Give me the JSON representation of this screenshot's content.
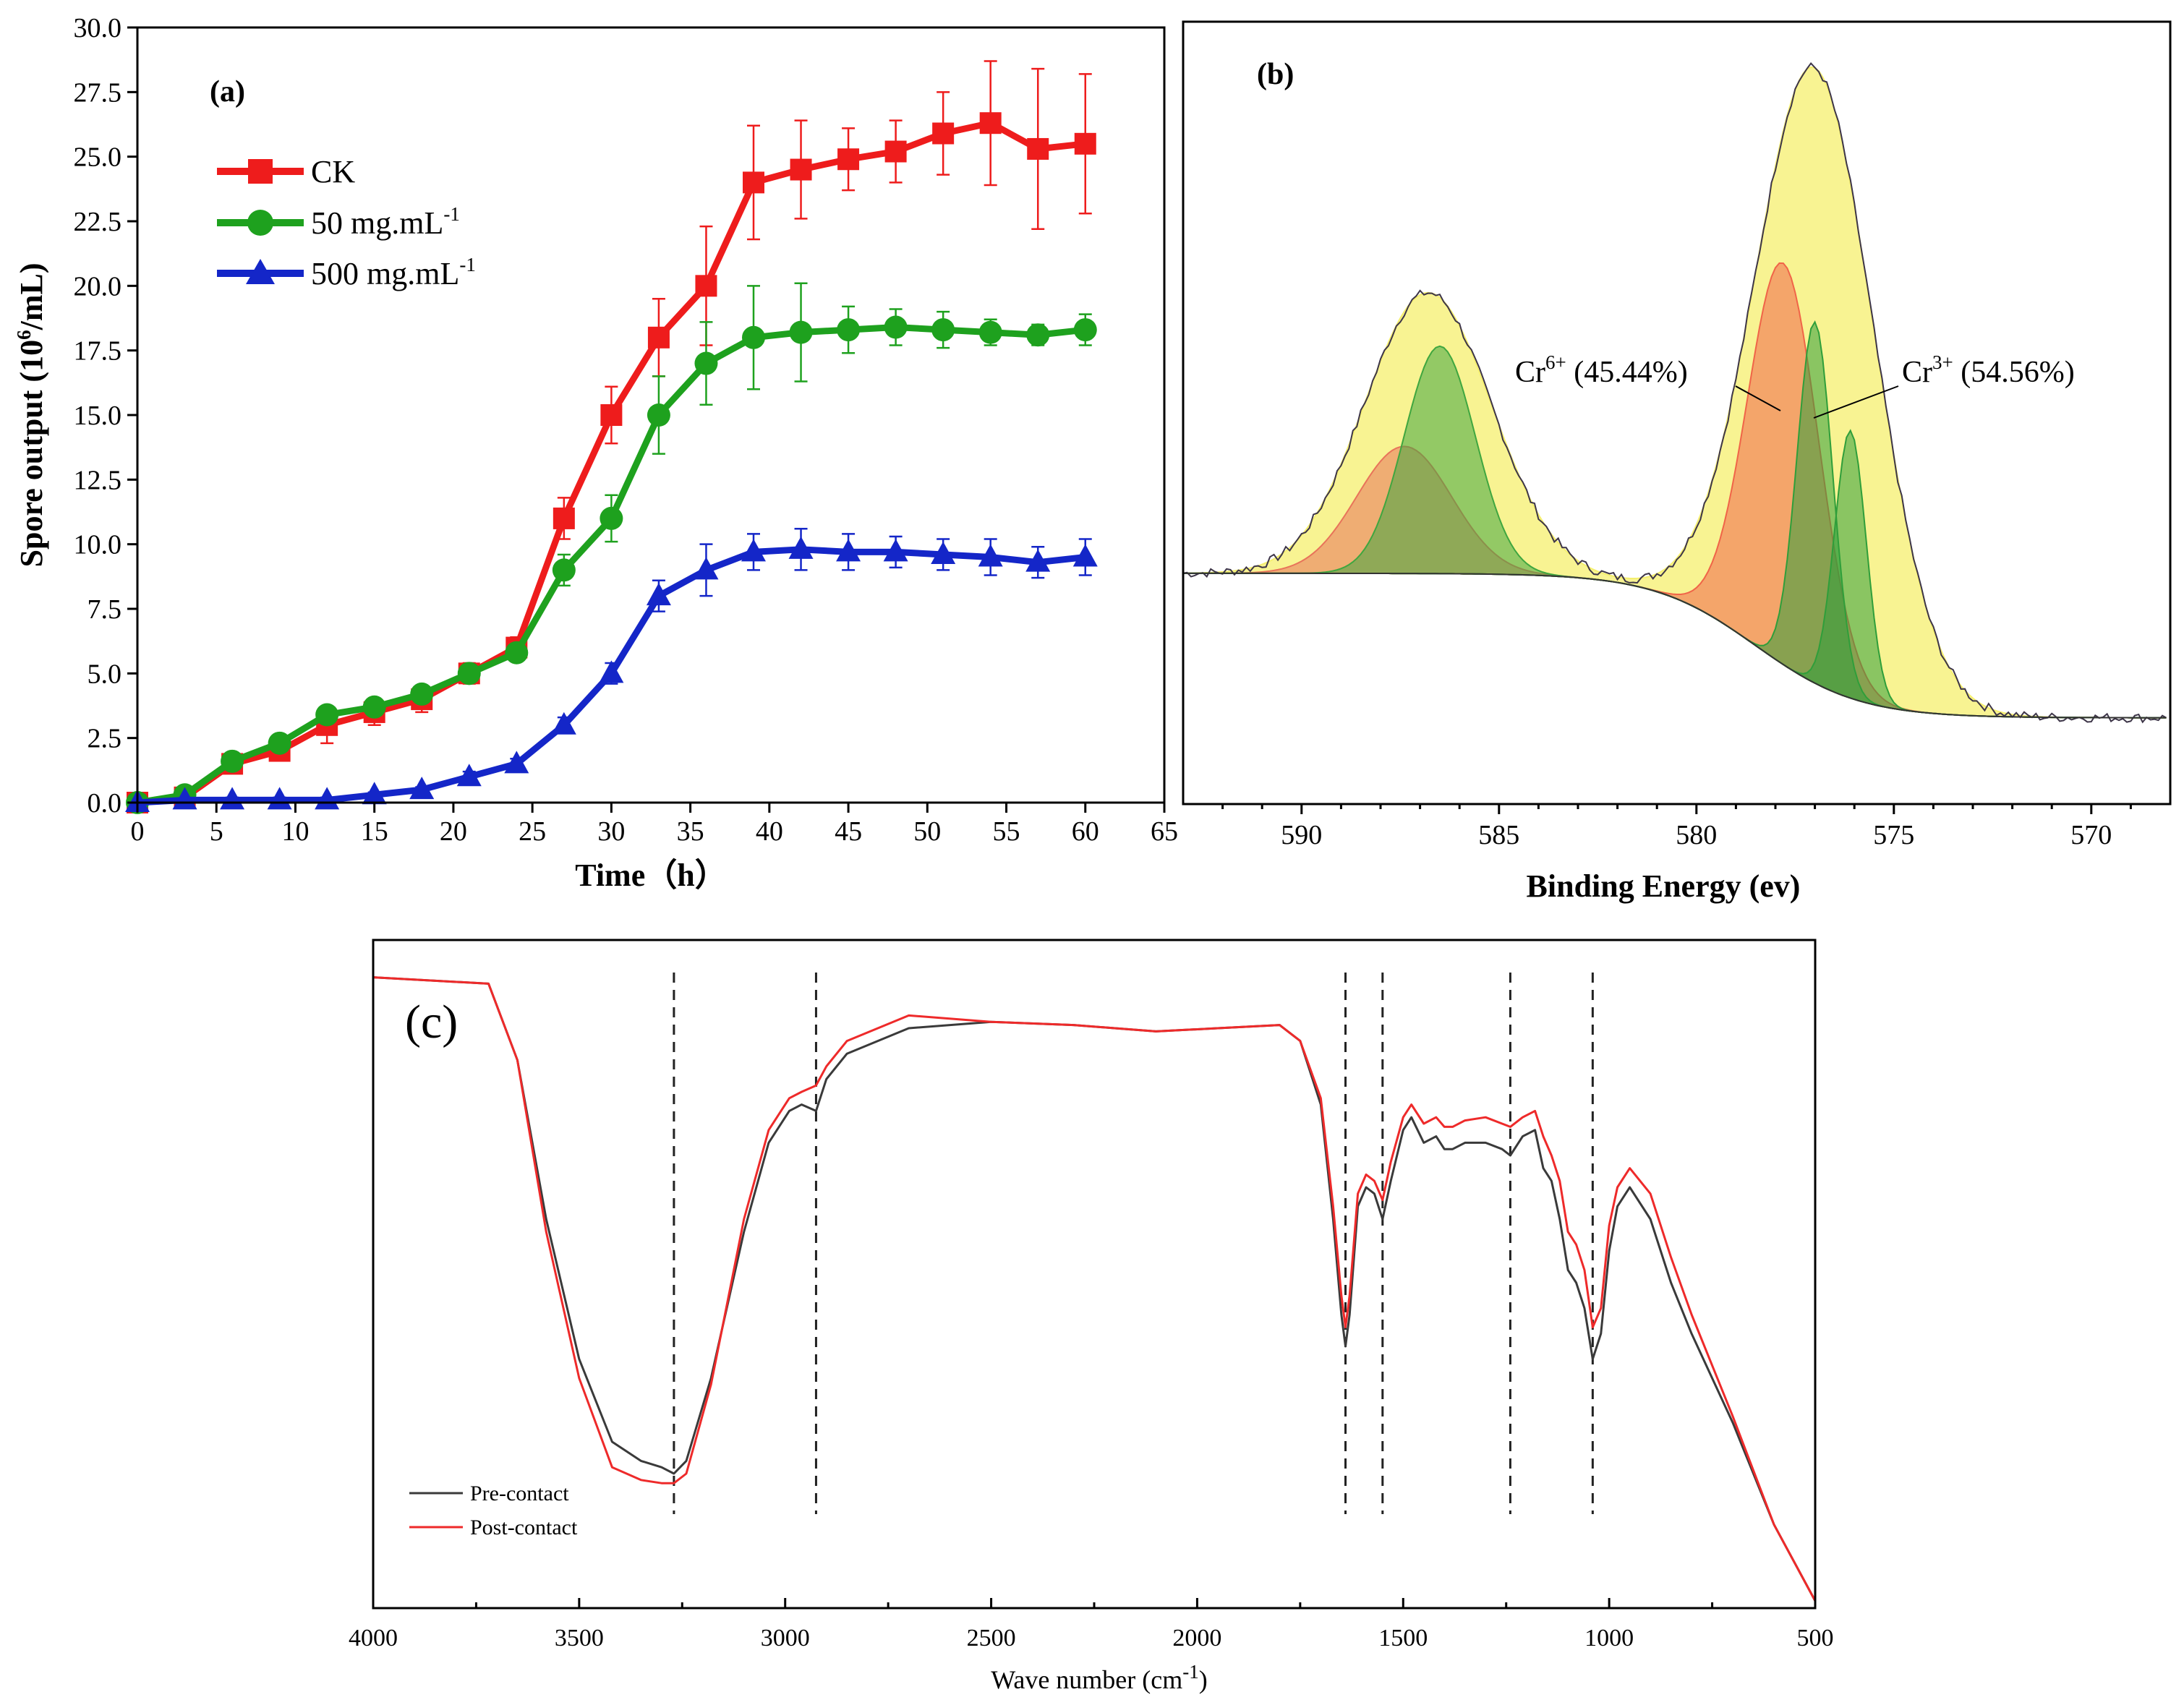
{
  "chart_data": [
    {
      "panel": "(a)",
      "type": "line",
      "xlabel": "Time（h）",
      "ylabel": "Spore output (10^6/mL)",
      "ylabel_prefix": "Spore output (10",
      "ylabel_sup": "6",
      "ylabel_suffix": "/mL)",
      "xlim": [
        0,
        65
      ],
      "ylim": [
        0,
        30
      ],
      "xticks": [
        "0",
        "5",
        "10",
        "15",
        "20",
        "25",
        "30",
        "35",
        "40",
        "45",
        "50",
        "55",
        "60",
        "65"
      ],
      "yticks": [
        "0.0",
        "2.5",
        "5.0",
        "7.5",
        "10.0",
        "12.5",
        "15.0",
        "17.5",
        "20.0",
        "22.5",
        "25.0",
        "27.5",
        "30.0"
      ],
      "x": [
        0,
        3,
        6,
        9,
        12,
        15,
        18,
        21,
        24,
        27,
        30,
        33,
        36,
        39,
        42,
        45,
        48,
        51,
        54,
        57,
        60
      ],
      "legend_position": "top-left",
      "series": [
        {
          "name": "CK",
          "label": "CK",
          "label_sup": "",
          "color": "#ee1c1c",
          "marker": "square",
          "values": [
            0,
            0.2,
            1.5,
            2.0,
            3.0,
            3.5,
            4.0,
            5.0,
            6.0,
            11.0,
            15.0,
            18.0,
            20.0,
            24.0,
            24.5,
            24.9,
            25.2,
            25.9,
            26.3,
            25.3,
            25.5
          ],
          "errors": [
            0,
            0,
            0.2,
            0.3,
            0.7,
            0.5,
            0.5,
            0.4,
            0.4,
            0.8,
            1.1,
            1.5,
            2.3,
            2.2,
            1.9,
            1.2,
            1.2,
            1.6,
            2.4,
            3.1,
            2.7
          ]
        },
        {
          "name": "50 mg.mL-1",
          "label": "50 mg.mL",
          "label_sup": "-1",
          "color": "#1ea11e",
          "marker": "circle",
          "values": [
            0,
            0.3,
            1.6,
            2.3,
            3.4,
            3.7,
            4.2,
            5.0,
            5.8,
            9.0,
            11.0,
            15.0,
            17.0,
            18.0,
            18.2,
            18.3,
            18.4,
            18.3,
            18.2,
            18.1,
            18.3
          ],
          "errors": [
            0,
            0,
            0.2,
            0.3,
            0.3,
            0.3,
            0.3,
            0.3,
            0.3,
            0.6,
            0.9,
            1.5,
            1.6,
            2.0,
            1.9,
            0.9,
            0.7,
            0.7,
            0.5,
            0.4,
            0.6
          ]
        },
        {
          "name": "500 mg.mL-1",
          "label": "500 mg.mL",
          "label_sup": "-1",
          "color": "#1426c8",
          "marker": "triangle",
          "values": [
            0,
            0.1,
            0.1,
            0.1,
            0.1,
            0.3,
            0.5,
            1.0,
            1.5,
            3.0,
            5.0,
            8.0,
            9.0,
            9.7,
            9.8,
            9.7,
            9.7,
            9.6,
            9.5,
            9.3,
            9.5
          ],
          "errors": [
            0,
            0,
            0.1,
            0.1,
            0.1,
            0.1,
            0.1,
            0.2,
            0.2,
            0.3,
            0.4,
            0.6,
            1.0,
            0.7,
            0.8,
            0.7,
            0.6,
            0.6,
            0.7,
            0.6,
            0.7
          ]
        }
      ]
    },
    {
      "panel": "(b)",
      "type": "area",
      "xlabel": "Binding Energy (ev)",
      "ylabel": "",
      "xlim": [
        593,
        568
      ],
      "xticks": [
        "590",
        "585",
        "580",
        "575",
        "570"
      ],
      "annotations": [
        {
          "label": "Cr",
          "sup": "6+",
          "text": " (45.44%)"
        },
        {
          "label": "Cr",
          "sup": "3+",
          "text": " (54.56%)"
        }
      ],
      "components": [
        {
          "name": "envelope",
          "color": "#f5ef6e",
          "peaks": [
            [
              586.8,
              2.1,
              1.6
            ],
            [
              577.0,
              4.6,
              1.5
            ]
          ]
        },
        {
          "name": "Cr6+ A",
          "color": "#e8735a",
          "peaks": [
            [
              587.4,
              0.95,
              1.2
            ]
          ]
        },
        {
          "name": "Cr3+ A",
          "color": "#3fa63f",
          "peaks": [
            [
              586.5,
              1.7,
              0.9
            ]
          ]
        },
        {
          "name": "Cr6+ B",
          "color": "#f06448",
          "peaks": [
            [
              577.8,
              3.0,
              0.9
            ]
          ]
        },
        {
          "name": "Cr3+ B1",
          "color": "#2f9e3a",
          "peaks": [
            [
              577.0,
              2.7,
              0.45
            ]
          ]
        },
        {
          "name": "Cr3+ B2",
          "color": "#2f9e3a",
          "peaks": [
            [
              576.1,
              2.0,
              0.4
            ]
          ]
        }
      ]
    },
    {
      "panel": "(c)",
      "type": "line",
      "xlabel": "Wave number (cm-1)",
      "xlabel_prefix": "Wave number (cm",
      "xlabel_sup": "-1",
      "xlabel_suffix": ")",
      "xlim": [
        4000,
        500
      ],
      "xticks": [
        "4000",
        "3500",
        "3000",
        "2500",
        "2000",
        "1500",
        "1000",
        "500"
      ],
      "dashed_lines": [
        3270,
        2925,
        1640,
        1550,
        1240,
        1040
      ],
      "legend_position": "bottom-left",
      "series": [
        {
          "name": "Pre-contact",
          "color": "#3a3a3a",
          "x": [
            4000,
            3720,
            3650,
            3580,
            3500,
            3420,
            3350,
            3300,
            3270,
            3240,
            3180,
            3100,
            3040,
            2990,
            2960,
            2925,
            2900,
            2850,
            2700,
            2500,
            2300,
            2200,
            2100,
            1950,
            1800,
            1750,
            1700,
            1670,
            1650,
            1640,
            1630,
            1610,
            1590,
            1570,
            1550,
            1530,
            1500,
            1480,
            1450,
            1420,
            1400,
            1380,
            1350,
            1300,
            1260,
            1240,
            1210,
            1180,
            1160,
            1140,
            1120,
            1100,
            1080,
            1060,
            1040,
            1020,
            1000,
            980,
            950,
            900,
            850,
            800,
            700,
            600,
            500
          ],
          "y": [
            0.98,
            0.97,
            0.85,
            0.6,
            0.38,
            0.25,
            0.22,
            0.21,
            0.2,
            0.22,
            0.35,
            0.58,
            0.72,
            0.77,
            0.78,
            0.77,
            0.82,
            0.86,
            0.9,
            0.91,
            0.905,
            0.9,
            0.895,
            0.9,
            0.905,
            0.88,
            0.78,
            0.6,
            0.45,
            0.4,
            0.45,
            0.62,
            0.65,
            0.64,
            0.6,
            0.66,
            0.74,
            0.76,
            0.72,
            0.73,
            0.71,
            0.71,
            0.72,
            0.72,
            0.71,
            0.7,
            0.73,
            0.74,
            0.68,
            0.66,
            0.6,
            0.52,
            0.5,
            0.46,
            0.38,
            0.42,
            0.55,
            0.62,
            0.65,
            0.6,
            0.5,
            0.42,
            0.28,
            0.12,
            0.0
          ]
        },
        {
          "name": "Post-contact",
          "color": "#ee2a2a",
          "x": [
            4000,
            3720,
            3650,
            3580,
            3500,
            3420,
            3350,
            3300,
            3270,
            3240,
            3180,
            3100,
            3040,
            2990,
            2960,
            2925,
            2900,
            2850,
            2700,
            2500,
            2300,
            2200,
            2100,
            1950,
            1800,
            1750,
            1700,
            1670,
            1650,
            1640,
            1630,
            1610,
            1590,
            1570,
            1550,
            1530,
            1500,
            1480,
            1450,
            1420,
            1400,
            1380,
            1350,
            1300,
            1260,
            1240,
            1210,
            1180,
            1160,
            1140,
            1120,
            1100,
            1080,
            1060,
            1040,
            1020,
            1000,
            980,
            950,
            900,
            850,
            800,
            700,
            600,
            500
          ],
          "y": [
            0.98,
            0.97,
            0.85,
            0.58,
            0.35,
            0.21,
            0.19,
            0.185,
            0.185,
            0.2,
            0.34,
            0.6,
            0.74,
            0.79,
            0.8,
            0.81,
            0.84,
            0.88,
            0.92,
            0.91,
            0.905,
            0.9,
            0.895,
            0.9,
            0.905,
            0.88,
            0.79,
            0.62,
            0.48,
            0.43,
            0.48,
            0.64,
            0.67,
            0.66,
            0.63,
            0.69,
            0.76,
            0.78,
            0.75,
            0.76,
            0.745,
            0.745,
            0.755,
            0.76,
            0.75,
            0.745,
            0.76,
            0.77,
            0.73,
            0.7,
            0.66,
            0.58,
            0.56,
            0.52,
            0.43,
            0.46,
            0.59,
            0.65,
            0.68,
            0.64,
            0.54,
            0.45,
            0.29,
            0.12,
            0.0
          ]
        }
      ]
    }
  ]
}
